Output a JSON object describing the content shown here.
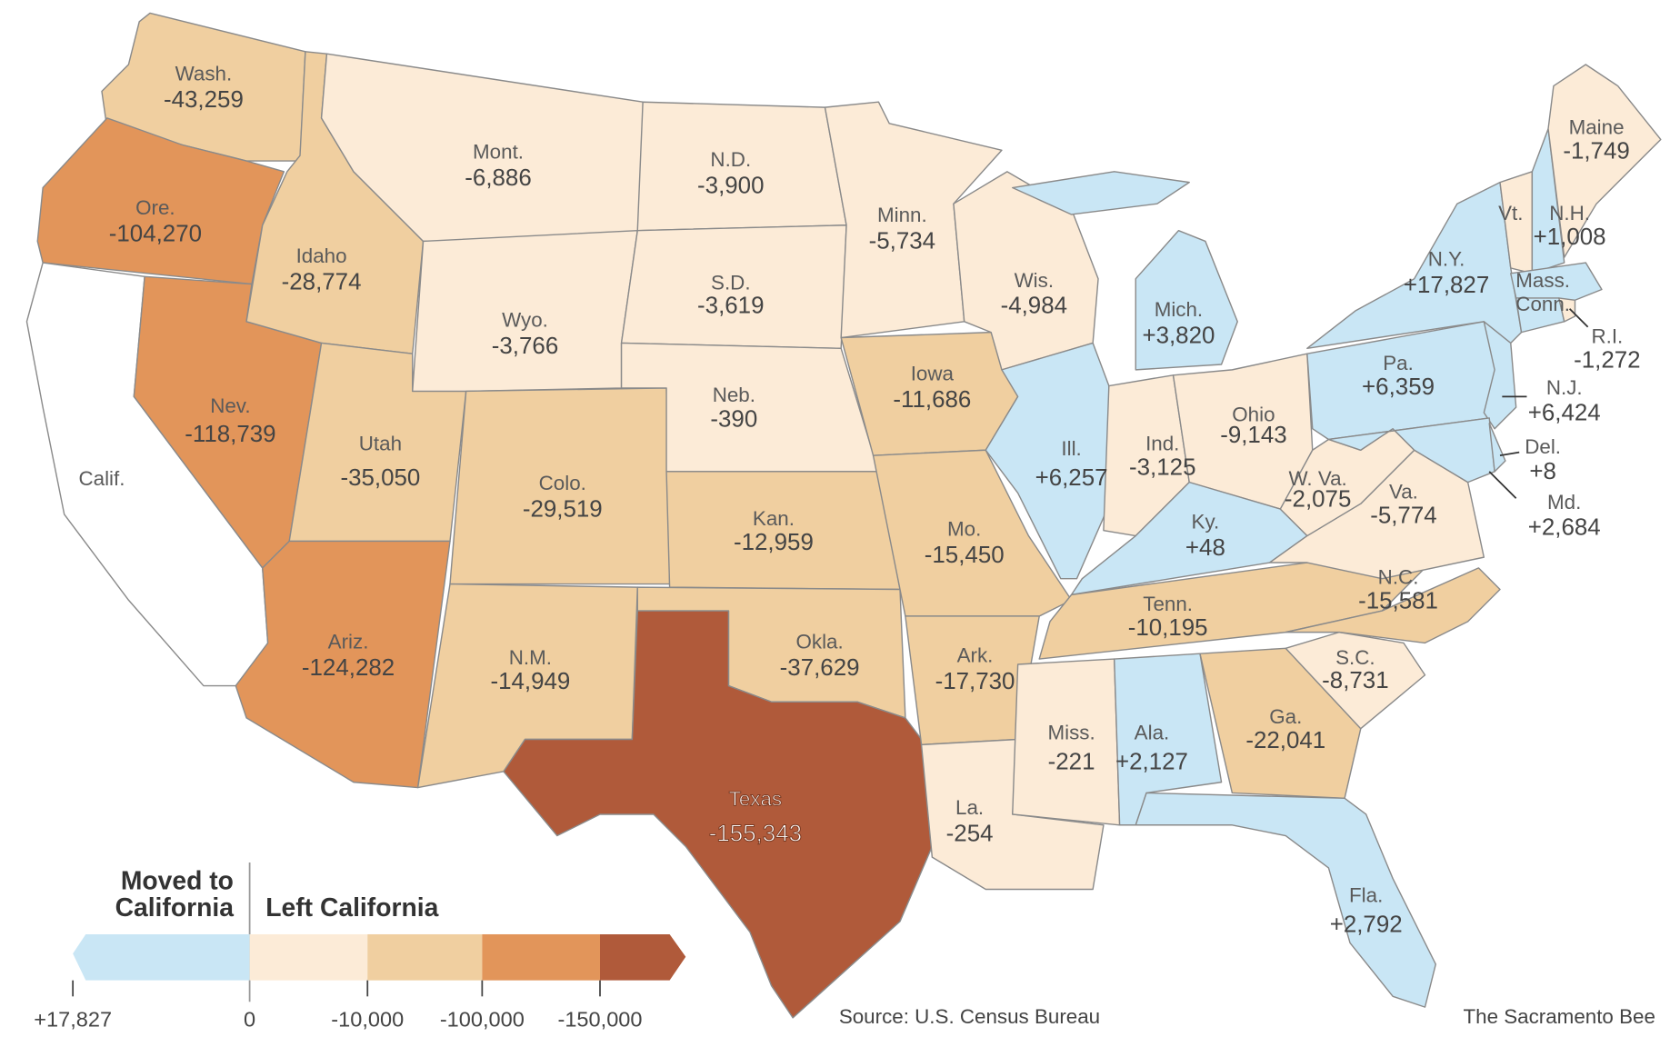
{
  "colors": {
    "moved_to": "#c9e6f5",
    "left_lt_10000": "#fcebd7",
    "left_10000_100000": "#f0cfa0",
    "left_100000_150000": "#e2955a",
    "left_gt_150000": "#b05a3a",
    "california": "#ffffff"
  },
  "states": [
    {
      "name": "Wash.",
      "value": "-43,259",
      "bin": "left_10000_100000"
    },
    {
      "name": "Ore.",
      "value": "-104,270",
      "bin": "left_100000_150000"
    },
    {
      "name": "Calif.",
      "value": "",
      "bin": "california"
    },
    {
      "name": "Nev.",
      "value": "-118,739",
      "bin": "left_100000_150000"
    },
    {
      "name": "Idaho",
      "value": "-28,774",
      "bin": "left_10000_100000"
    },
    {
      "name": "Utah",
      "value": "-35,050",
      "bin": "left_10000_100000"
    },
    {
      "name": "Ariz.",
      "value": "-124,282",
      "bin": "left_100000_150000"
    },
    {
      "name": "Mont.",
      "value": "-6,886",
      "bin": "left_lt_10000"
    },
    {
      "name": "Wyo.",
      "value": "-3,766",
      "bin": "left_lt_10000"
    },
    {
      "name": "Colo.",
      "value": "-29,519",
      "bin": "left_10000_100000"
    },
    {
      "name": "N.M.",
      "value": "-14,949",
      "bin": "left_10000_100000"
    },
    {
      "name": "N.D.",
      "value": "-3,900",
      "bin": "left_lt_10000"
    },
    {
      "name": "S.D.",
      "value": "-3,619",
      "bin": "left_lt_10000"
    },
    {
      "name": "Neb.",
      "value": "-390",
      "bin": "left_lt_10000"
    },
    {
      "name": "Kan.",
      "value": "-12,959",
      "bin": "left_10000_100000"
    },
    {
      "name": "Okla.",
      "value": "-37,629",
      "bin": "left_10000_100000"
    },
    {
      "name": "Texas",
      "value": "-155,343",
      "bin": "left_gt_150000"
    },
    {
      "name": "Minn.",
      "value": "-5,734",
      "bin": "left_lt_10000"
    },
    {
      "name": "Iowa",
      "value": "-11,686",
      "bin": "left_10000_100000"
    },
    {
      "name": "Mo.",
      "value": "-15,450",
      "bin": "left_10000_100000"
    },
    {
      "name": "Ark.",
      "value": "-17,730",
      "bin": "left_10000_100000"
    },
    {
      "name": "La.",
      "value": "-254",
      "bin": "left_lt_10000"
    },
    {
      "name": "Miss.",
      "value": "-221",
      "bin": "left_lt_10000"
    },
    {
      "name": "Wis.",
      "value": "-4,984",
      "bin": "left_lt_10000"
    },
    {
      "name": "Ill.",
      "value": "+6,257",
      "bin": "moved_to"
    },
    {
      "name": "Mich.",
      "value": "+3,820",
      "bin": "moved_to"
    },
    {
      "name": "Ind.",
      "value": "-3,125",
      "bin": "left_lt_10000"
    },
    {
      "name": "Ohio",
      "value": "-9,143",
      "bin": "left_lt_10000"
    },
    {
      "name": "Ky.",
      "value": "+48",
      "bin": "moved_to"
    },
    {
      "name": "Tenn.",
      "value": "-10,195",
      "bin": "left_10000_100000"
    },
    {
      "name": "Ala.",
      "value": "+2,127",
      "bin": "moved_to"
    },
    {
      "name": "Ga.",
      "value": "-22,041",
      "bin": "left_10000_100000"
    },
    {
      "name": "Fla.",
      "value": "+2,792",
      "bin": "moved_to"
    },
    {
      "name": "S.C.",
      "value": "-8,731",
      "bin": "left_lt_10000"
    },
    {
      "name": "N.C.",
      "value": "-15,581",
      "bin": "left_10000_100000"
    },
    {
      "name": "Va.",
      "value": "-5,774",
      "bin": "left_lt_10000"
    },
    {
      "name": "W. Va.",
      "value": "-2,075",
      "bin": "left_lt_10000"
    },
    {
      "name": "Pa.",
      "value": "+6,359",
      "bin": "moved_to"
    },
    {
      "name": "N.Y.",
      "value": "+17,827",
      "bin": "moved_to"
    },
    {
      "name": "N.J.",
      "value": "+6,424",
      "bin": "moved_to"
    },
    {
      "name": "Md.",
      "value": "+2,684",
      "bin": "moved_to"
    },
    {
      "name": "Del.",
      "value": "+8",
      "bin": "moved_to"
    },
    {
      "name": "Vt.",
      "value": "",
      "bin": "left_lt_10000"
    },
    {
      "name": "N.H.",
      "value": "+1,008",
      "bin": "moved_to"
    },
    {
      "name": "Maine",
      "value": "-1,749",
      "bin": "left_lt_10000"
    },
    {
      "name": "Mass.",
      "value": "",
      "bin": "moved_to"
    },
    {
      "name": "Conn.",
      "value": "",
      "bin": "moved_to"
    },
    {
      "name": "R.I.",
      "value": "-1,272",
      "bin": "left_lt_10000"
    }
  ],
  "legend": {
    "moved_line1": "Moved to",
    "moved_line2": "California",
    "left_label": "Left California",
    "ticks": [
      "+17,827",
      "0",
      "-10,000",
      "-100,000",
      "-150,000"
    ]
  },
  "source": "Source: U.S. Census Bureau",
  "credit": "The Sacramento Bee"
}
